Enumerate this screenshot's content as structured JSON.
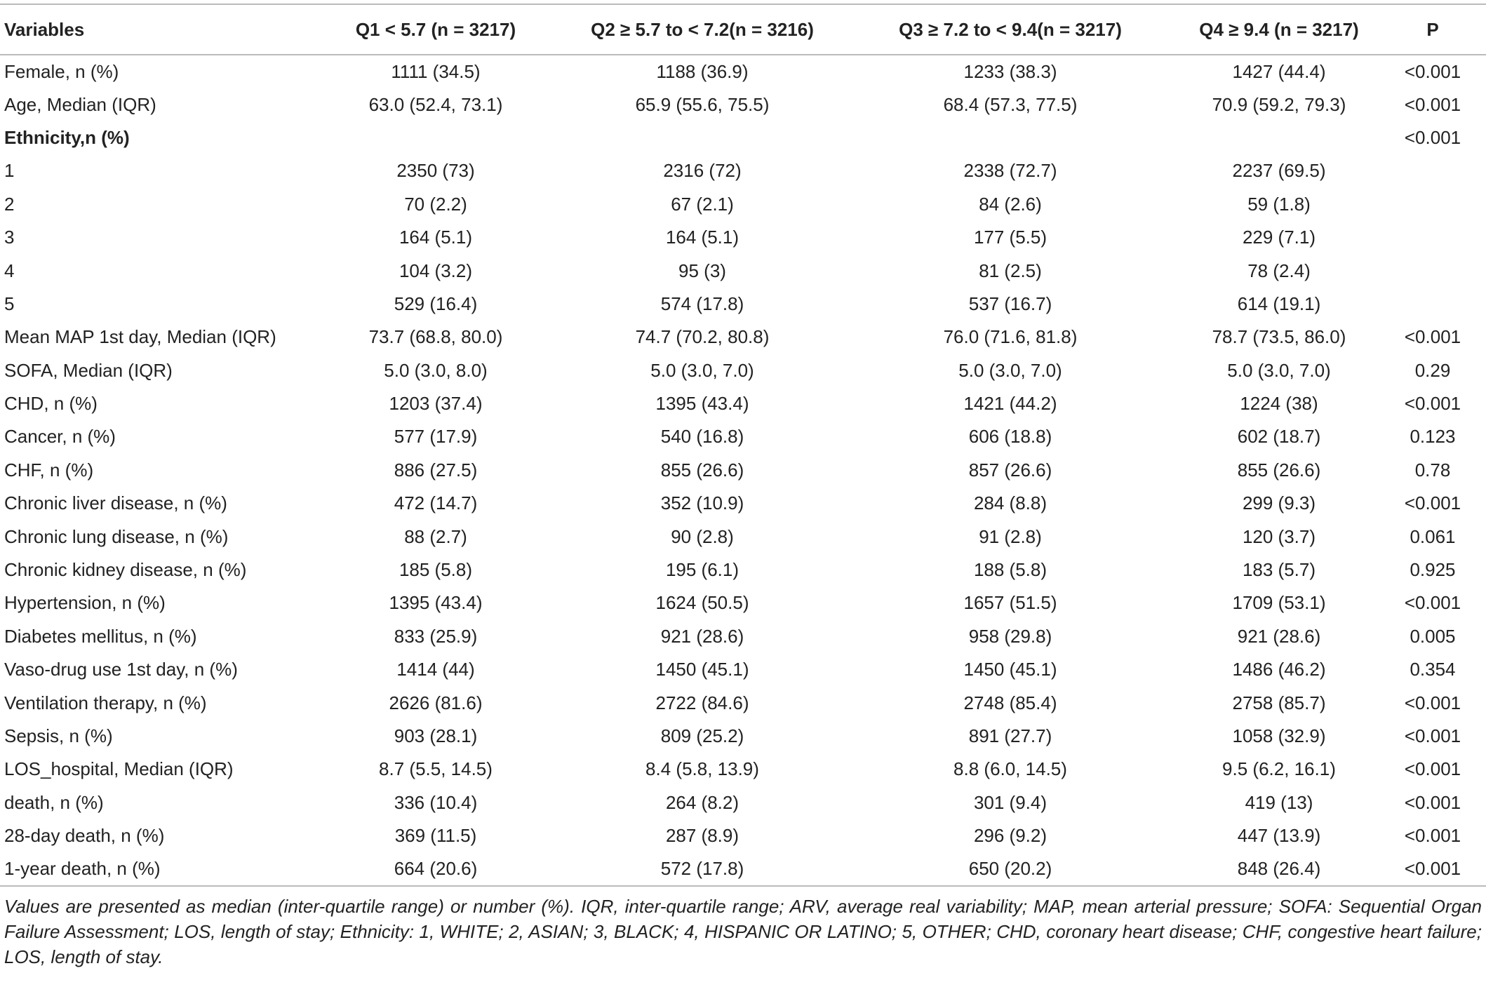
{
  "table": {
    "header": [
      "Variables",
      "Q1 < 5.7 (n = 3217)",
      "Q2 ≥ 5.7 to < 7.2(n = 3216)",
      "Q3 ≥ 7.2 to < 9.4(n = 3217)",
      "Q4 ≥ 9.4 (n = 3217)",
      "P"
    ],
    "rows": [
      [
        "Female, n (%)",
        "1111 (34.5)",
        "1188 (36.9)",
        "1233 (38.3)",
        "1427 (44.4)",
        "<0.001"
      ],
      [
        "Age, Median (IQR)",
        "63.0 (52.4, 73.1)",
        "65.9 (55.6, 75.5)",
        "68.4 (57.3, 77.5)",
        "70.9 (59.2, 79.3)",
        "<0.001"
      ],
      [
        "Ethnicity,n (%)",
        null,
        null,
        null,
        null,
        "<0.001"
      ],
      [
        "1",
        "2350 (73)",
        "2316 (72)",
        "2338 (72.7)",
        "2237 (69.5)",
        null
      ],
      [
        "2",
        "70 (2.2)",
        "67 (2.1)",
        "84 (2.6)",
        "59 (1.8)",
        null
      ],
      [
        "3",
        "164 (5.1)",
        "164 (5.1)",
        "177 (5.5)",
        "229 (7.1)",
        null
      ],
      [
        "4",
        "104 (3.2)",
        "95 (3)",
        "81 (2.5)",
        "78 (2.4)",
        null
      ],
      [
        "5",
        "529 (16.4)",
        "574 (17.8)",
        "537 (16.7)",
        "614 (19.1)",
        null
      ],
      [
        "Mean MAP 1st day, Median (IQR)",
        "73.7 (68.8, 80.0)",
        "74.7 (70.2, 80.8)",
        "76.0 (71.6, 81.8)",
        "78.7 (73.5, 86.0)",
        "<0.001"
      ],
      [
        "SOFA, Median (IQR)",
        "5.0 (3.0, 8.0)",
        "5.0 (3.0, 7.0)",
        "5.0 (3.0, 7.0)",
        "5.0 (3.0, 7.0)",
        "0.29"
      ],
      [
        "CHD, n (%)",
        "1203 (37.4)",
        "1395 (43.4)",
        "1421 (44.2)",
        "1224 (38)",
        "<0.001"
      ],
      [
        "Cancer, n (%)",
        "577 (17.9)",
        "540 (16.8)",
        "606 (18.8)",
        "602 (18.7)",
        "0.123"
      ],
      [
        "CHF, n (%)",
        "886 (27.5)",
        "855 (26.6)",
        "857 (26.6)",
        "855 (26.6)",
        "0.78"
      ],
      [
        "Chronic liver disease, n (%)",
        "472 (14.7)",
        "352 (10.9)",
        "284 (8.8)",
        "299 (9.3)",
        "<0.001"
      ],
      [
        "Chronic lung disease, n (%)",
        "88 (2.7)",
        "90 (2.8)",
        "91 (2.8)",
        "120 (3.7)",
        "0.061"
      ],
      [
        "Chronic kidney disease, n (%)",
        "185 (5.8)",
        "195 (6.1)",
        "188 (5.8)",
        "183 (5.7)",
        "0.925"
      ],
      [
        "Hypertension, n (%)",
        "1395 (43.4)",
        "1624 (50.5)",
        "1657 (51.5)",
        "1709 (53.1)",
        "<0.001"
      ],
      [
        "Diabetes mellitus, n (%)",
        "833 (25.9)",
        "921 (28.6)",
        "958 (29.8)",
        "921 (28.6)",
        "0.005"
      ],
      [
        "Vaso-drug use 1st day, n (%)",
        "1414 (44)",
        "1450 (45.1)",
        "1450 (45.1)",
        "1486 (46.2)",
        "0.354"
      ],
      [
        "Ventilation therapy, n (%)",
        "2626 (81.6)",
        "2722 (84.6)",
        "2748 (85.4)",
        "2758 (85.7)",
        "<0.001"
      ],
      [
        "Sepsis, n (%)",
        "903 (28.1)",
        "809 (25.2)",
        "891 (27.7)",
        "1058 (32.9)",
        "<0.001"
      ],
      [
        "LOS_hospital, Median (IQR)",
        "8.7 (5.5, 14.5)",
        "8.4 (5.8, 13.9)",
        "8.8 (6.0, 14.5)",
        "9.5 (6.2, 16.1)",
        "<0.001"
      ],
      [
        "death, n (%)",
        "336 (10.4)",
        "264 (8.2)",
        "301 (9.4)",
        "419 (13)",
        "<0.001"
      ],
      [
        "28-day death, n (%)",
        "369 (11.5)",
        "287 (8.9)",
        "296 (9.2)",
        "447 (13.9)",
        "<0.001"
      ],
      [
        "1-year death, n (%)",
        "664 (20.6)",
        "572 (17.8)",
        "650 (20.2)",
        "848 (26.4)",
        "<0.001"
      ]
    ],
    "footnote": "Values are presented as median (inter-quartile range) or number (%). IQR, inter-quartile range; ARV, average real variability; MAP, mean arterial pressure; SOFA: Sequential Organ Failure Assessment; LOS, length of stay; Ethnicity: 1, WHITE; 2, ASIAN; 3, BLACK; 4, HISPANIC OR LATINO; 5, OTHER; CHD, coronary heart disease; CHF, congestive heart failure; LOS, length of stay."
  }
}
